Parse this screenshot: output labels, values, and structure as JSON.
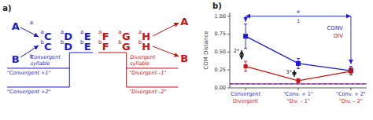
{
  "chart_data": [
    {
      "type": "diagram",
      "label": "a)",
      "convergent": {
        "color": "#1c1cd6",
        "sources": [
          "A",
          "B"
        ],
        "row_labels": [
          "a",
          "b"
        ],
        "syllables": [
          "C",
          "D",
          "E"
        ],
        "caption": [
          "Convergent",
          "syllable"
        ],
        "levels": [
          "\"Convergent +1\"",
          "\"Convergent +2\""
        ]
      },
      "divergent": {
        "color": "#cc1111",
        "targets": [
          "A",
          "B"
        ],
        "row_labels": [
          "a",
          "b"
        ],
        "syllables": [
          "F",
          "G",
          "H"
        ],
        "caption": [
          "Divergent",
          "syllable"
        ],
        "levels": [
          "\"Divergent –1\"",
          "\"Divergent –2\""
        ]
      }
    },
    {
      "type": "line",
      "label": "b)",
      "y_label": "COM Distance",
      "ylim": [
        0,
        1.05
      ],
      "yticks": [
        {
          "value": 0,
          "label": "0.00"
        },
        0.25,
        {
          "value": 0.5,
          "label": "0.50"
        },
        0.75,
        {
          "value": 1.0,
          "label": "1.00"
        }
      ],
      "baseline": 0.055,
      "series": [
        {
          "name": "CONV",
          "color": "#1c1cd6",
          "marker": "square",
          "line_style": "solid",
          "categories": [
            "Convergent",
            "\"Conv. + 1\"",
            "\"Conv. + 2\""
          ],
          "values": [
            0.72,
            0.34,
            0.24
          ],
          "errors": [
            0.17,
            0.07,
            0.06
          ]
        },
        {
          "name": "DIV",
          "color": "#cc1111",
          "marker": "square",
          "line_style": "solid",
          "categories": [
            "Divergent",
            "\"Div. – 1\"",
            "\"Div. – 2\""
          ],
          "values": [
            0.3,
            0.1,
            0.23
          ],
          "errors": [
            0.07,
            0.03,
            0.05
          ]
        }
      ],
      "annotations": [
        {
          "text": "*",
          "label": "1",
          "series": 0,
          "categories": [
            0,
            2
          ],
          "color": "#1c1cd6"
        },
        {
          "text": "2*",
          "category": 0,
          "color": "#222222"
        },
        {
          "text": "3*",
          "category": 1,
          "color": "#222222"
        }
      ]
    }
  ]
}
